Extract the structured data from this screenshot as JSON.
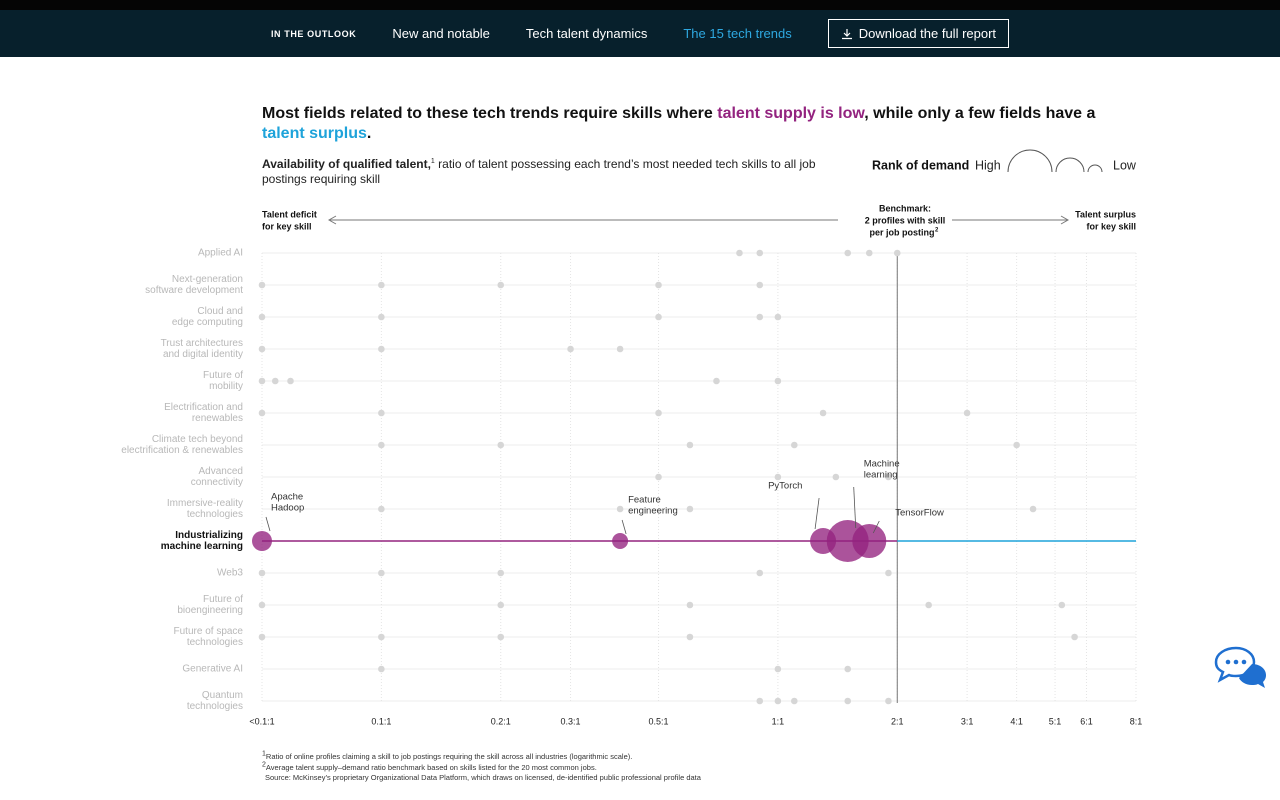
{
  "nav": {
    "section": "IN THE OUTLOOK",
    "links": [
      "New and notable",
      "Tech talent dynamics",
      "The 15 tech trends"
    ],
    "button": "Download the full report"
  },
  "chart_data": {
    "type": "scatter",
    "title": [
      "Most fields related to these tech trends require skills where ",
      "talent supply is low",
      ", while only a few fields have a ",
      "talent surplus",
      "."
    ],
    "subtitle": {
      "bold": "Availability of qualified talent,",
      "note": "1",
      "text": " ratio of talent possessing each trend’s most needed tech skills to all job postings requiring skill"
    },
    "legend": {
      "title": "Rank of demand",
      "high": "High",
      "low": "Low"
    },
    "annotations": {
      "left": [
        "Talent deficit",
        "for key skill"
      ],
      "benchmark": [
        "Benchmark:",
        "2 profiles with skill",
        "per job posting"
      ],
      "benchmark_note": "2",
      "right": [
        "Talent surplus",
        "for key skill"
      ]
    },
    "benchmark": 2,
    "xscale": "log",
    "xlim": [
      0.05,
      8
    ],
    "xticks": [
      {
        "value": 0.05,
        "label": "<0.1:1"
      },
      {
        "value": 0.1,
        "label": "0.1:1"
      },
      {
        "value": 0.2,
        "label": "0.2:1"
      },
      {
        "value": 0.3,
        "label": "0.3:1"
      },
      {
        "value": 0.5,
        "label": "0.5:1"
      },
      {
        "value": 1,
        "label": "1:1"
      },
      {
        "value": 2,
        "label": "2:1"
      },
      {
        "value": 3,
        "label": "3:1"
      },
      {
        "value": 4,
        "label": "4:1"
      },
      {
        "value": 5,
        "label": "5:1"
      },
      {
        "value": 6,
        "label": "6:1"
      },
      {
        "value": 8,
        "label": "8:1"
      }
    ],
    "grid": true,
    "highlight_row": 9,
    "colors": {
      "points": "#d6d6d6",
      "highlight": "#93237f",
      "deficit": "#93237f",
      "surplus": "#1ea3da"
    },
    "rows": [
      {
        "label": [
          "Applied AI"
        ],
        "x": [
          0.8,
          0.9,
          1.5,
          1.7,
          2.0
        ]
      },
      {
        "label": [
          "Next-generation",
          "software development"
        ],
        "x": [
          0.05,
          0.1,
          0.2,
          0.5,
          0.9
        ]
      },
      {
        "label": [
          "Cloud and",
          "edge computing"
        ],
        "x": [
          0.05,
          0.1,
          0.5,
          0.9,
          1.0
        ]
      },
      {
        "label": [
          "Trust architectures",
          "and digital identity"
        ],
        "x": [
          0.05,
          0.1,
          0.3,
          0.4
        ]
      },
      {
        "label": [
          "Future of",
          "mobility"
        ],
        "x": [
          0.05,
          0.054,
          0.059,
          0.7,
          1.0
        ]
      },
      {
        "label": [
          "Electrification and",
          "renewables"
        ],
        "x": [
          0.05,
          0.1,
          0.5,
          1.3,
          3.0
        ]
      },
      {
        "label": [
          "Climate tech beyond",
          "electrification & renewables"
        ],
        "x": [
          0.1,
          0.2,
          0.6,
          1.1,
          4.0
        ]
      },
      {
        "label": [
          "Advanced",
          "connectivity"
        ],
        "x": [
          0.5,
          1.0,
          1.4,
          1.9
        ]
      },
      {
        "label": [
          "Immersive-reality",
          "technologies"
        ],
        "x": [
          0.1,
          0.4,
          0.6,
          4.4
        ]
      },
      {
        "label": [
          "Industrializing",
          "machine learning"
        ],
        "x": [
          0.05,
          0.4,
          1.3,
          1.5,
          1.7
        ],
        "size": [
          10,
          8,
          13,
          21,
          17
        ],
        "point_labels": [
          [
            "Apache",
            "Hadoop"
          ],
          [
            "Feature",
            "engineering"
          ],
          [
            "PyTorch"
          ],
          [
            "Machine",
            "learning"
          ],
          [
            "TensorFlow"
          ]
        ]
      },
      {
        "label": [
          "Web3"
        ],
        "x": [
          0.05,
          0.1,
          0.2,
          0.9,
          1.9
        ]
      },
      {
        "label": [
          "Future of",
          "bioengineering"
        ],
        "x": [
          0.05,
          0.2,
          0.6,
          2.4,
          5.2
        ]
      },
      {
        "label": [
          "Future of space",
          "technologies"
        ],
        "x": [
          0.05,
          0.1,
          0.2,
          0.6,
          5.6
        ]
      },
      {
        "label": [
          "Generative AI"
        ],
        "x": [
          0.1,
          1.0,
          1.5
        ]
      },
      {
        "label": [
          "Quantum",
          "technologies"
        ],
        "x": [
          0.9,
          1.0,
          1.1,
          1.5,
          1.9
        ]
      }
    ]
  },
  "footnotes": [
    {
      "note": "1",
      "text": "Ratio of online profiles claiming a skill to job postings requiring the skill across all industries (logarithmic scale)."
    },
    {
      "note": "2",
      "text": "Average talent supply–demand ratio benchmark based on skills listed for the 20 most common jobs."
    },
    {
      "text": "Source: McKinsey’s proprietary Organizational Data Platform, which draws on licensed, de-identified public professional profile data"
    }
  ]
}
